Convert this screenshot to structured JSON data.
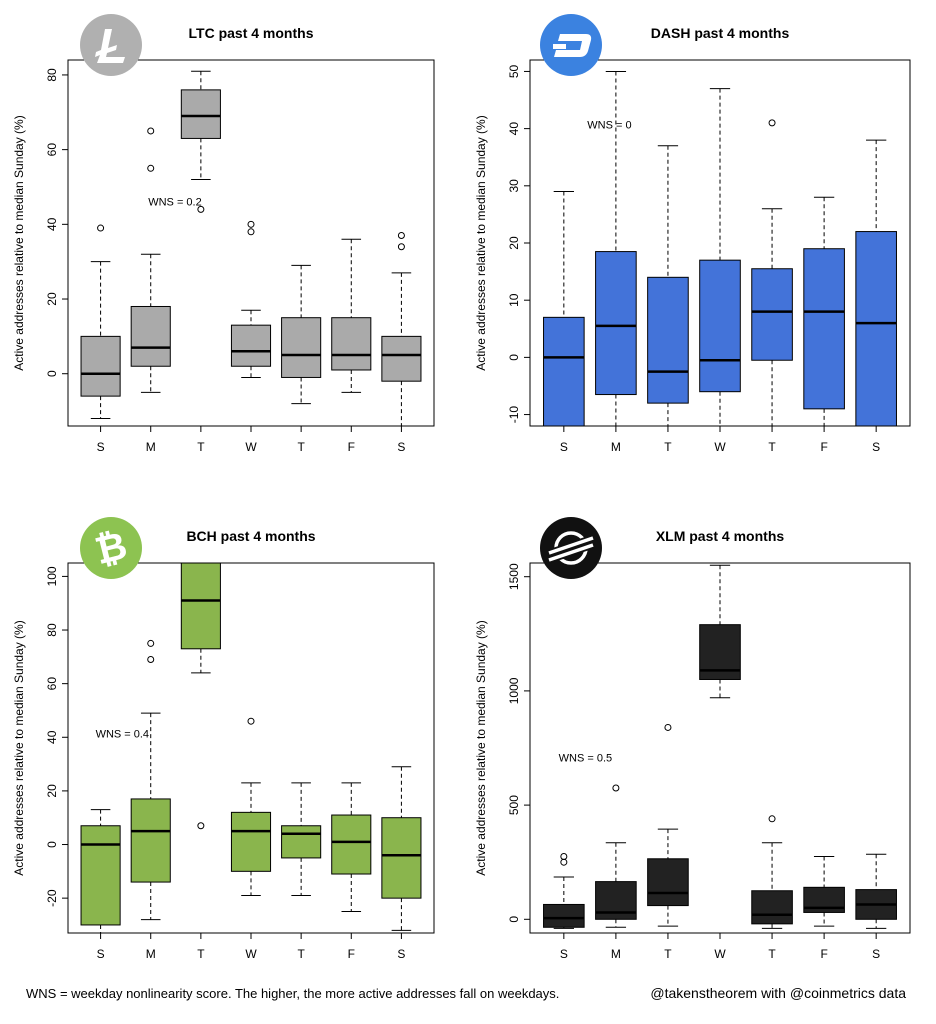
{
  "footer": {
    "note": "WNS = weekday nonlinearity score. The higher, the more active addresses fall on weekdays.",
    "credit": "@takenstheorem with @coinmetrics data"
  },
  "chart_data": [
    {
      "type": "boxplot",
      "title": "LTC past 4 months",
      "logo": "litecoin-logo",
      "logo_color": "#b0b0b0",
      "box_color": "#aaaaaa",
      "ylabel": "Active addresses relative to median Sunday (%)",
      "xlabel": "",
      "ylim": [
        -14,
        84
      ],
      "yticks": [
        "0",
        "20",
        "40",
        "60",
        "80"
      ],
      "ytick_values": [
        0,
        20,
        40,
        60,
        80
      ],
      "categories": [
        "S",
        "M",
        "T",
        "W",
        "T",
        "F",
        "S"
      ],
      "annotation": "WNS = 0.2",
      "annotation_at": [
        1.6,
        45
      ],
      "boxes": [
        {
          "low": -12,
          "q1": -6,
          "median": 0,
          "q3": 10,
          "high": 30,
          "outliers": [
            39
          ]
        },
        {
          "low": -5,
          "q1": 2,
          "median": 7,
          "q3": 18,
          "high": 32,
          "outliers": [
            55,
            65
          ]
        },
        {
          "low": 52,
          "q1": 63,
          "median": 69,
          "q3": 76,
          "high": 81,
          "outliers": [
            44
          ]
        },
        {
          "low": -1,
          "q1": 2,
          "median": 6,
          "q3": 13,
          "high": 17,
          "outliers": [
            38,
            40
          ]
        },
        {
          "low": -8,
          "q1": -1,
          "median": 5,
          "q3": 15,
          "high": 29,
          "outliers": []
        },
        {
          "low": -5,
          "q1": 1,
          "median": 5,
          "q3": 15,
          "high": 36,
          "outliers": []
        },
        {
          "low": -14,
          "q1": -2,
          "median": 5,
          "q3": 10,
          "high": 27,
          "outliers": [
            34,
            37
          ]
        }
      ]
    },
    {
      "type": "boxplot",
      "title": "DASH past 4 months",
      "logo": "dash-logo",
      "logo_color": "#3b82e0",
      "box_color": "#4373d9",
      "ylabel": "Active addresses relative to median Sunday (%)",
      "xlabel": "",
      "ylim": [
        -12,
        52
      ],
      "yticks": [
        "-10",
        "0",
        "10",
        "20",
        "30",
        "40",
        "50"
      ],
      "ytick_values": [
        -10,
        0,
        10,
        20,
        30,
        40,
        50
      ],
      "categories": [
        "S",
        "M",
        "T",
        "W",
        "T",
        "F",
        "S"
      ],
      "annotation": "WNS = 0",
      "annotation_at": [
        1.1,
        40
      ],
      "boxes": [
        {
          "low": -12,
          "q1": -12,
          "median": 0,
          "q3": 7,
          "high": 29,
          "outliers": []
        },
        {
          "low": -12,
          "q1": -6.5,
          "median": 5.5,
          "q3": 18.5,
          "high": 50,
          "outliers": []
        },
        {
          "low": -12,
          "q1": -8,
          "median": -2.5,
          "q3": 14,
          "high": 37,
          "outliers": []
        },
        {
          "low": -12,
          "q1": -6,
          "median": -0.5,
          "q3": 17,
          "high": 47,
          "outliers": []
        },
        {
          "low": -12,
          "q1": -0.5,
          "median": 8,
          "q3": 15.5,
          "high": 26,
          "outliers": [
            41
          ]
        },
        {
          "low": -12,
          "q1": -9,
          "median": 8,
          "q3": 19,
          "high": 28,
          "outliers": []
        },
        {
          "low": -12,
          "q1": -12,
          "median": 6,
          "q3": 22,
          "high": 38,
          "outliers": []
        }
      ]
    },
    {
      "type": "boxplot",
      "title": "BCH past 4 months",
      "logo": "bitcoin-cash-logo",
      "logo_color": "#8dc351",
      "box_color": "#8ab54d",
      "ylabel": "Active addresses relative to median Sunday (%)",
      "xlabel": "",
      "ylim": [
        -33,
        105
      ],
      "yticks": [
        "-20",
        "0",
        "20",
        "40",
        "60",
        "80",
        "100"
      ],
      "ytick_values": [
        -20,
        0,
        20,
        40,
        60,
        80,
        100
      ],
      "categories": [
        "S",
        "M",
        "T",
        "W",
        "T",
        "F",
        "S"
      ],
      "annotation": "WNS = 0.4",
      "annotation_at": [
        0.55,
        40
      ],
      "boxes": [
        {
          "low": -33,
          "q1": -30,
          "median": 0,
          "q3": 7,
          "high": 13,
          "outliers": []
        },
        {
          "low": -28,
          "q1": -14,
          "median": 5,
          "q3": 17,
          "high": 49,
          "outliers": [
            69,
            75
          ]
        },
        {
          "low": 64,
          "q1": 73,
          "median": 91,
          "q3": 105,
          "high": 105,
          "outliers": [
            7
          ]
        },
        {
          "low": -19,
          "q1": -10,
          "median": 5,
          "q3": 12,
          "high": 23,
          "outliers": [
            46
          ]
        },
        {
          "low": -19,
          "q1": -5,
          "median": 4,
          "q3": 7,
          "high": 23,
          "outliers": []
        },
        {
          "low": -25,
          "q1": -11,
          "median": 1,
          "q3": 11,
          "high": 23,
          "outliers": []
        },
        {
          "low": -32,
          "q1": -20,
          "median": -4,
          "q3": 10,
          "high": 29,
          "outliers": []
        }
      ]
    },
    {
      "type": "boxplot",
      "title": "XLM past 4 months",
      "logo": "stellar-logo",
      "logo_color": "#111111",
      "box_color": "#222222",
      "ylabel": "Active addresses relative to median Sunday (%)",
      "xlabel": "",
      "ylim": [
        -60,
        1560
      ],
      "yticks": [
        "0",
        "500",
        "1000",
        "1500"
      ],
      "ytick_values": [
        0,
        500,
        1000,
        1500
      ],
      "categories": [
        "S",
        "M",
        "T",
        "W",
        "T",
        "F",
        "S"
      ],
      "annotation": "WNS = 0.5",
      "annotation_at": [
        0.55,
        690
      ],
      "boxes": [
        {
          "low": -40,
          "q1": -35,
          "median": 5,
          "q3": 65,
          "high": 185,
          "outliers": [
            250,
            275
          ]
        },
        {
          "low": -35,
          "q1": 0,
          "median": 30,
          "q3": 165,
          "high": 335,
          "outliers": [
            575
          ]
        },
        {
          "low": -30,
          "q1": 60,
          "median": 115,
          "q3": 265,
          "high": 395,
          "outliers": [
            840
          ]
        },
        {
          "low": 970,
          "q1": 1050,
          "median": 1090,
          "q3": 1290,
          "high": 1550,
          "outliers": []
        },
        {
          "low": -40,
          "q1": -20,
          "median": 20,
          "q3": 125,
          "high": 335,
          "outliers": [
            440
          ]
        },
        {
          "low": -30,
          "q1": 30,
          "median": 50,
          "q3": 140,
          "high": 275,
          "outliers": []
        },
        {
          "low": -40,
          "q1": 0,
          "median": 65,
          "q3": 130,
          "high": 285,
          "outliers": []
        }
      ]
    }
  ]
}
